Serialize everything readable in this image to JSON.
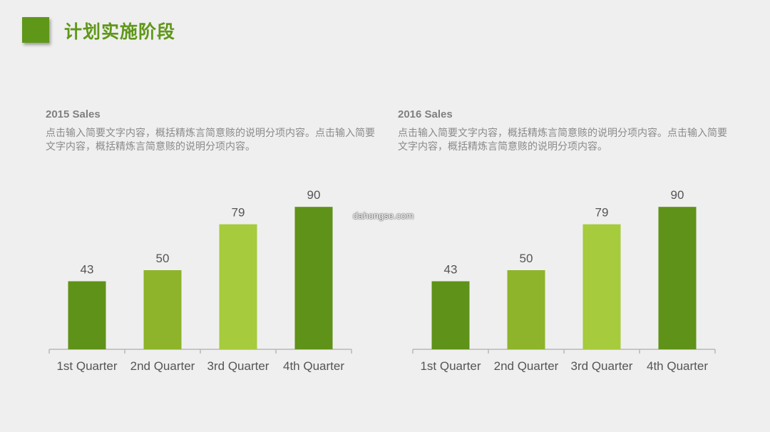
{
  "header": {
    "title": "计划实施阶段"
  },
  "colors": {
    "accent": "#5f9718",
    "bar_dark": "#5f9218",
    "bar_mid": "#8db42a",
    "bar_light": "#a6cb3c",
    "axis": "#b8b8b8",
    "label": "#555555",
    "background": "#efefef"
  },
  "panels": [
    {
      "heading": "2015 Sales",
      "description": "点击输入简要文字内容，概括精炼言简意赅的说明分项内容。点击输入简要文字内容，概括精炼言简意赅的说明分项内容。"
    },
    {
      "heading": "2016 Sales",
      "description": "点击输入简要文字内容，概括精炼言简意赅的说明分项内容。点击输入简要文字内容，概括精炼言简意赅的说明分项内容。"
    }
  ],
  "watermark": "dahongse.com",
  "chart_data": [
    {
      "type": "bar",
      "categories": [
        "1st Quarter",
        "2nd Quarter",
        "3rd Quarter",
        "4th Quarter"
      ],
      "values": [
        43,
        50,
        79,
        90
      ],
      "bar_colors": [
        "#5f9218",
        "#8db42a",
        "#a6cb3c",
        "#5f9218"
      ],
      "data_labels": true,
      "ylim": [
        0,
        100
      ],
      "grid": false
    },
    {
      "type": "bar",
      "categories": [
        "1st Quarter",
        "2nd Quarter",
        "3rd Quarter",
        "4th Quarter"
      ],
      "values": [
        43,
        50,
        79,
        90
      ],
      "bar_colors": [
        "#5f9218",
        "#8db42a",
        "#a6cb3c",
        "#5f9218"
      ],
      "data_labels": true,
      "ylim": [
        0,
        100
      ],
      "grid": false
    }
  ]
}
